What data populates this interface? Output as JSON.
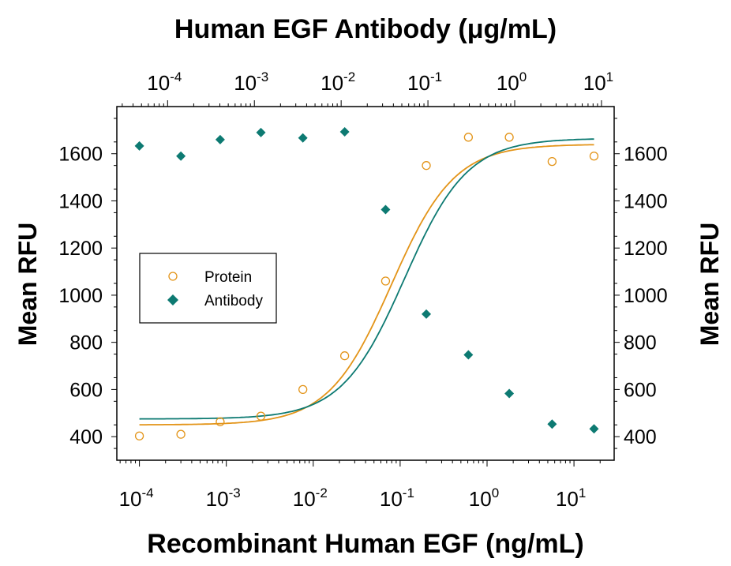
{
  "chart_data": {
    "type": "scatter",
    "title": "Human EGF Antibody (μg/mL)",
    "xlabel": "Recombinant Human EGF (ng/mL)",
    "ylabel": "Mean RFU",
    "ylabel_right": "Mean RFU",
    "xscale": "log",
    "xlim": [
      5.5e-05,
      29
    ],
    "top_axis": {
      "label": "Human EGF Antibody (μg/mL)",
      "scale": "log",
      "xlim": [
        2.6e-05,
        14
      ],
      "tick_labels": [
        "10^-4",
        "10^-3",
        "10^-2",
        "10^-1",
        "10^0",
        "10^1"
      ]
    },
    "x_tick_labels": [
      "10^-4",
      "10^-3",
      "10^-2",
      "10^-1",
      "10^0",
      "10^1"
    ],
    "ylim": [
      300,
      1800
    ],
    "y_ticks": [
      400,
      600,
      800,
      1000,
      1200,
      1400,
      1600
    ],
    "grid": false,
    "legend_placement": "center-left",
    "series": [
      {
        "name": "Protein",
        "color": "#e39418",
        "marker": "open-circle",
        "x": [
          0.0001,
          0.0003,
          0.00085,
          0.0025,
          0.0076,
          0.023,
          0.068,
          0.2,
          0.61,
          1.8,
          5.6,
          17
        ],
        "y": [
          403,
          410,
          463,
          487,
          600,
          743,
          1060,
          1550,
          1670,
          1670,
          1567,
          1590
        ],
        "fit": {
          "bottom": 450,
          "top": 1640,
          "log_ec50": -1.1,
          "hill": 1.2
        }
      },
      {
        "name": "Antibody",
        "color": "#0d7a72",
        "marker": "filled-diamond",
        "x": [
          0.0001,
          0.0003,
          0.00085,
          0.0025,
          0.0076,
          0.023,
          0.068,
          0.2,
          0.61,
          1.8,
          5.6,
          17
        ],
        "y": [
          1633,
          1590,
          1660,
          1690,
          1667,
          1693,
          1363,
          920,
          747,
          583,
          453,
          433
        ],
        "fit": {
          "bottom": 475,
          "top": 1665,
          "log_ec50": -0.95,
          "hill": 1.2
        }
      }
    ]
  }
}
